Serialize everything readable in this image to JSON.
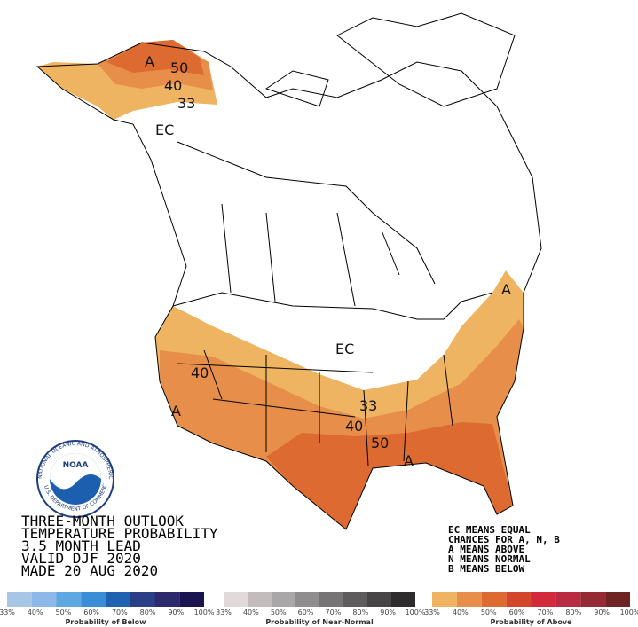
{
  "title_lines": [
    "THREE-MONTH OUTLOOK",
    "TEMPERATURE PROBABILITY",
    "3.5 MONTH LEAD",
    "VALID DJF 2020",
    "MADE 20 AUG 2020"
  ],
  "key_lines": [
    "EC MEANS EQUAL",
    "CHANCES FOR A, N, B",
    "A MEANS ABOVE",
    "N MEANS NORMAL",
    "B MEANS BELOW"
  ],
  "map_labels": [
    "A",
    "50",
    "40",
    "33",
    "EC",
    "A",
    "EC",
    "40",
    "A",
    "33",
    "40",
    "50",
    "A"
  ],
  "logo": {
    "name": "NOAA",
    "ring_top": "NATIONAL OCEANIC AND ATMOSPHERIC ADMINISTRATION",
    "ring_bottom": "U.S. DEPARTMENT OF COMMERCE"
  },
  "legends": [
    {
      "title": "Probability of Below",
      "colors": [
        "#a7c6e6",
        "#8cb9e8",
        "#5ea8e2",
        "#3a8ed6",
        "#1f63b0",
        "#2b3f87",
        "#2c2a6d",
        "#1a1450"
      ],
      "labels": [
        "33%",
        "40%",
        "50%",
        "60%",
        "70%",
        "80%",
        "90%",
        "100%"
      ]
    },
    {
      "title": "Probability of Near-Normal",
      "colors": [
        "#e2d9da",
        "#c2bcbd",
        "#a9a7a7",
        "#8f8d8d",
        "#767474",
        "#5e5c5c",
        "#474545",
        "#2e2c2c"
      ],
      "labels": [
        "33%",
        "40%",
        "50%",
        "60%",
        "70%",
        "80%",
        "90%",
        "100%"
      ]
    },
    {
      "title": "Probability of Above",
      "colors": [
        "#efb462",
        "#e78f4a",
        "#dc6a31",
        "#d4462b",
        "#d22a3a",
        "#b82b41",
        "#952a35",
        "#6d2423"
      ],
      "labels": [
        "33%",
        "40%",
        "50%",
        "60%",
        "70%",
        "80%",
        "90%",
        "100%"
      ]
    }
  ]
}
